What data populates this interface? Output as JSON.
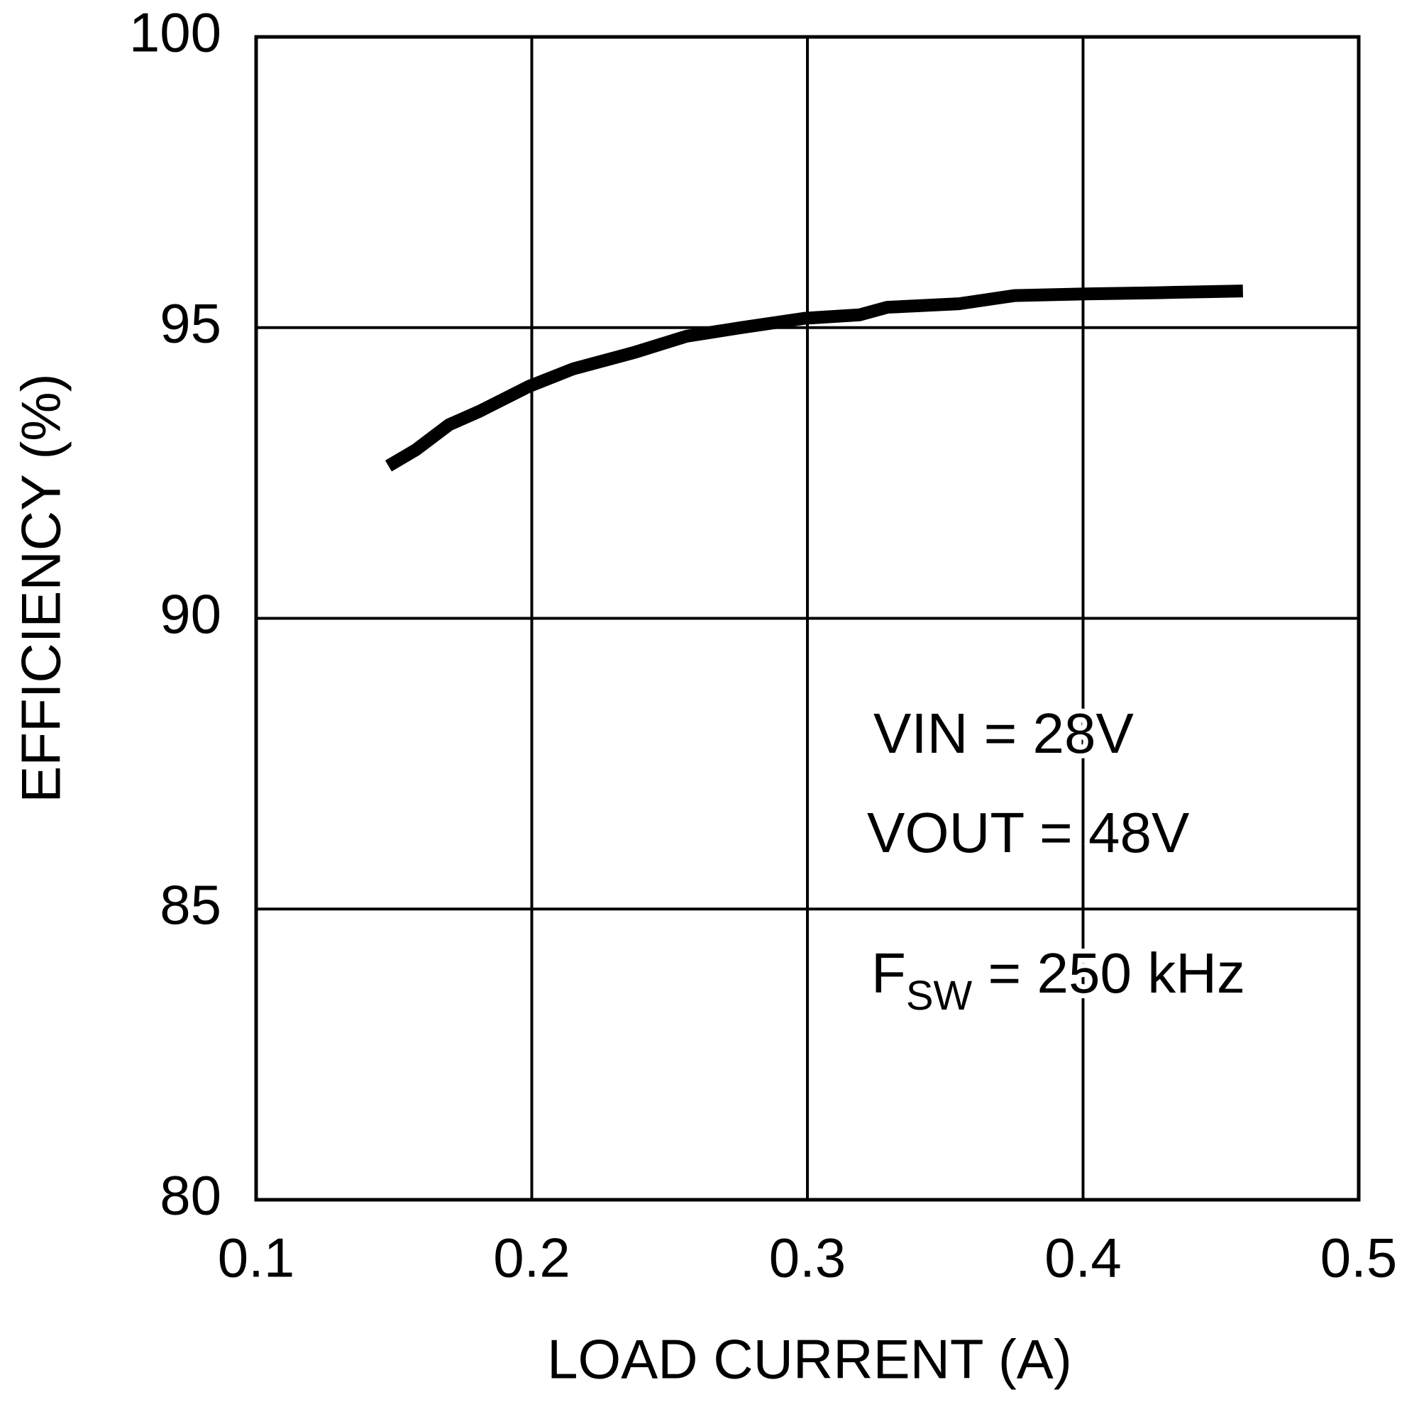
{
  "chart_data": {
    "type": "line",
    "x_label": "LOAD CURRENT (A)",
    "y_label": "EFFICIENCY (%)",
    "xlim": [
      0.1,
      0.5
    ],
    "xticks": [
      0.1,
      0.2,
      0.3,
      0.4,
      0.5
    ],
    "ylim": [
      80,
      100
    ],
    "yticks": [
      80,
      85,
      90,
      95,
      100
    ],
    "grid": true,
    "series": [
      {
        "color": "#000000",
        "x": [
          0.148,
          0.158,
          0.17,
          0.181,
          0.199,
          0.215,
          0.237,
          0.256,
          0.276,
          0.299,
          0.319,
          0.329,
          0.355,
          0.375,
          0.401,
          0.427,
          0.458
        ],
        "values": [
          92.62,
          92.9,
          93.33,
          93.56,
          93.99,
          94.29,
          94.57,
          94.85,
          95.0,
          95.16,
          95.22,
          95.35,
          95.41,
          95.55,
          95.58,
          95.6,
          95.63
        ]
      }
    ],
    "annotations": [
      {
        "text": "VIN = 28V"
      },
      {
        "text": "VOUT = 48V"
      },
      {
        "text": "F",
        "subscript": "SW",
        "suffix": " = 250 kHz"
      }
    ]
  }
}
